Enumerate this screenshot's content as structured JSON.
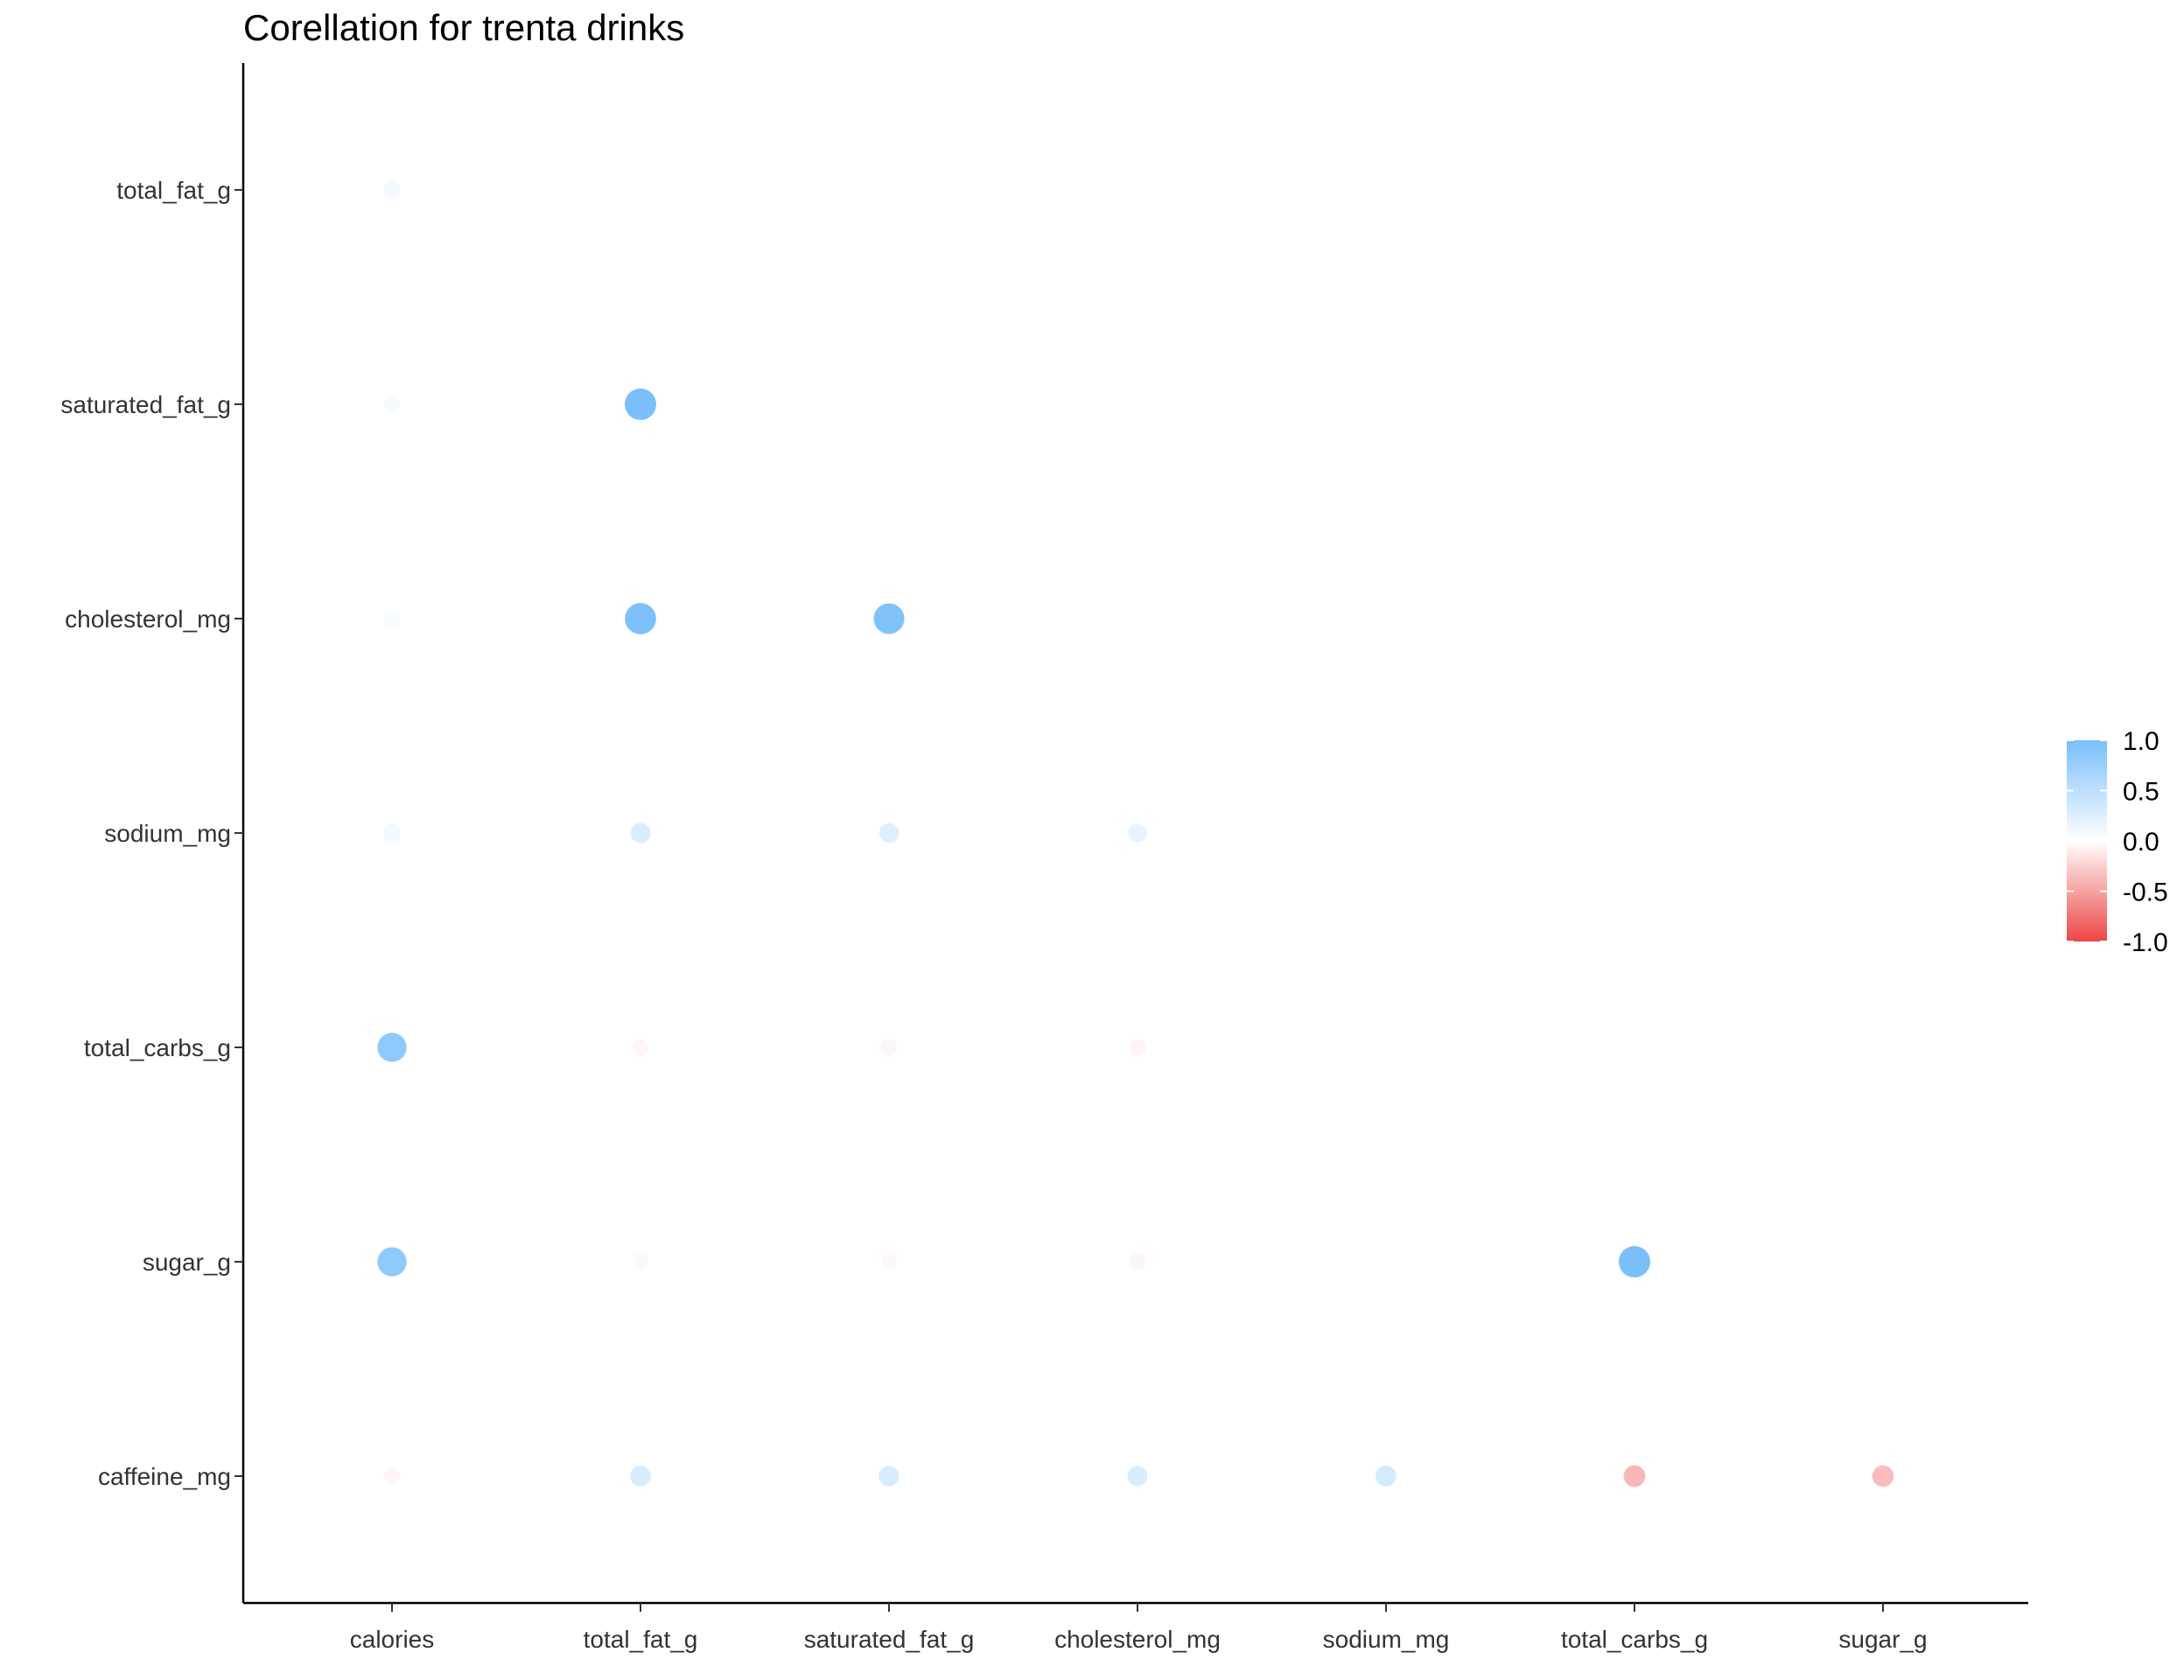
{
  "chart_data": {
    "type": "scatter",
    "title": "Corellation for trenta drinks",
    "x_categories": [
      "calories",
      "total_fat_g",
      "saturated_fat_g",
      "cholesterol_mg",
      "sodium_mg",
      "total_carbs_g",
      "sugar_g"
    ],
    "y_categories": [
      "total_fat_g",
      "saturated_fat_g",
      "cholesterol_mg",
      "sodium_mg",
      "total_carbs_g",
      "sugar_g",
      "caffeine_mg"
    ],
    "points": [
      {
        "x": "calories",
        "y": "total_fat_g",
        "value": 0.08
      },
      {
        "x": "calories",
        "y": "saturated_fat_g",
        "value": 0.06
      },
      {
        "x": "calories",
        "y": "cholesterol_mg",
        "value": 0.05
      },
      {
        "x": "calories",
        "y": "sodium_mg",
        "value": 0.1
      },
      {
        "x": "total_fat_g",
        "y": "saturated_fat_g",
        "value": 1.0
      },
      {
        "x": "total_fat_g",
        "y": "cholesterol_mg",
        "value": 0.98
      },
      {
        "x": "saturated_fat_g",
        "y": "cholesterol_mg",
        "value": 0.95
      },
      {
        "x": "total_fat_g",
        "y": "sodium_mg",
        "value": 0.28
      },
      {
        "x": "saturated_fat_g",
        "y": "sodium_mg",
        "value": 0.25
      },
      {
        "x": "cholesterol_mg",
        "y": "sodium_mg",
        "value": 0.18
      },
      {
        "x": "calories",
        "y": "total_carbs_g",
        "value": 0.85
      },
      {
        "x": "total_fat_g",
        "y": "total_carbs_g",
        "value": -0.05
      },
      {
        "x": "saturated_fat_g",
        "y": "total_carbs_g",
        "value": -0.05
      },
      {
        "x": "cholesterol_mg",
        "y": "total_carbs_g",
        "value": -0.06
      },
      {
        "x": "calories",
        "y": "sugar_g",
        "value": 0.85
      },
      {
        "x": "total_fat_g",
        "y": "sugar_g",
        "value": -0.04
      },
      {
        "x": "saturated_fat_g",
        "y": "sugar_g",
        "value": -0.04
      },
      {
        "x": "cholesterol_mg",
        "y": "sugar_g",
        "value": -0.05
      },
      {
        "x": "total_carbs_g",
        "y": "sugar_g",
        "value": 1.0
      },
      {
        "x": "calories",
        "y": "caffeine_mg",
        "value": -0.05
      },
      {
        "x": "total_fat_g",
        "y": "caffeine_mg",
        "value": 0.3
      },
      {
        "x": "saturated_fat_g",
        "y": "caffeine_mg",
        "value": 0.3
      },
      {
        "x": "cholesterol_mg",
        "y": "caffeine_mg",
        "value": 0.28
      },
      {
        "x": "sodium_mg",
        "y": "caffeine_mg",
        "value": 0.32
      },
      {
        "x": "total_carbs_g",
        "y": "caffeine_mg",
        "value": -0.38
      },
      {
        "x": "sugar_g",
        "y": "caffeine_mg",
        "value": -0.36
      }
    ],
    "color_scale": {
      "min": -1.0,
      "max": 1.0,
      "low_color": "#ED4545",
      "mid_color": "#FFFFFF",
      "high_color": "#7ABFFA",
      "tick_labels": [
        "1.0",
        "0.5",
        "0.0",
        "-0.5",
        "-1.0"
      ],
      "ticks": [
        1.0,
        0.5,
        0.0,
        -0.5,
        -1.0
      ]
    },
    "size_encodes": "absolute correlation",
    "grid": false,
    "legend_placement": "right"
  }
}
